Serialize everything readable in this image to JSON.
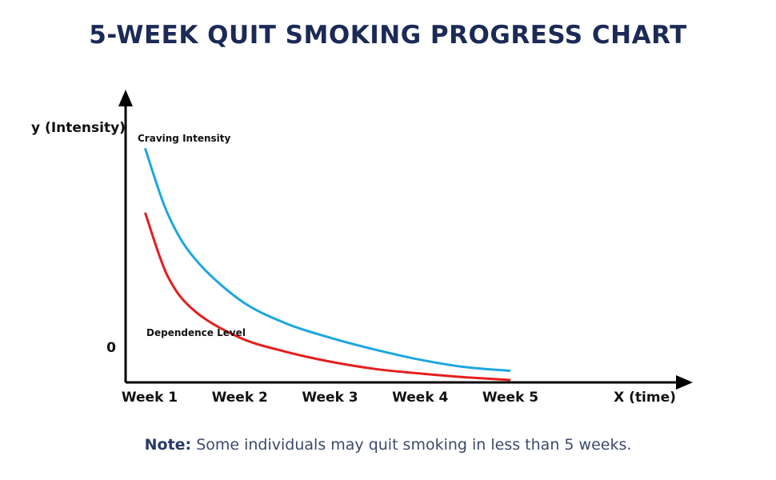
{
  "title": "5-WEEK QUIT SMOKING PROGRESS CHART",
  "note": {
    "label": "Note:",
    "text": "Some individuals may quit smoking in less than 5 weeks."
  },
  "colors": {
    "craving": "#1ea6e0",
    "dependence": "#e61e1e",
    "title": "#1b2a56",
    "axis": "#000000"
  },
  "chart_data": {
    "type": "line",
    "xlabel": "X (time)",
    "ylabel": "y (Intensity)",
    "categories": [
      "Week 1",
      "Week 2",
      "Week 3",
      "Week 4",
      "Week 5"
    ],
    "y_tick_labels": [
      "0"
    ],
    "x": [
      0.95,
      1.2,
      1.5,
      2,
      2.5,
      3,
      3.5,
      4,
      4.5,
      5
    ],
    "series": [
      {
        "name": "Craving Intensity",
        "values": [
          252,
          181,
          132,
          87,
          62,
          46,
          33,
          22,
          14,
          10
        ]
      },
      {
        "name": "Dependence Level",
        "values": [
          182,
          113,
          75,
          46,
          31,
          20,
          12,
          7,
          3,
          0
        ]
      }
    ],
    "grid": false,
    "legend": "inline labels"
  }
}
